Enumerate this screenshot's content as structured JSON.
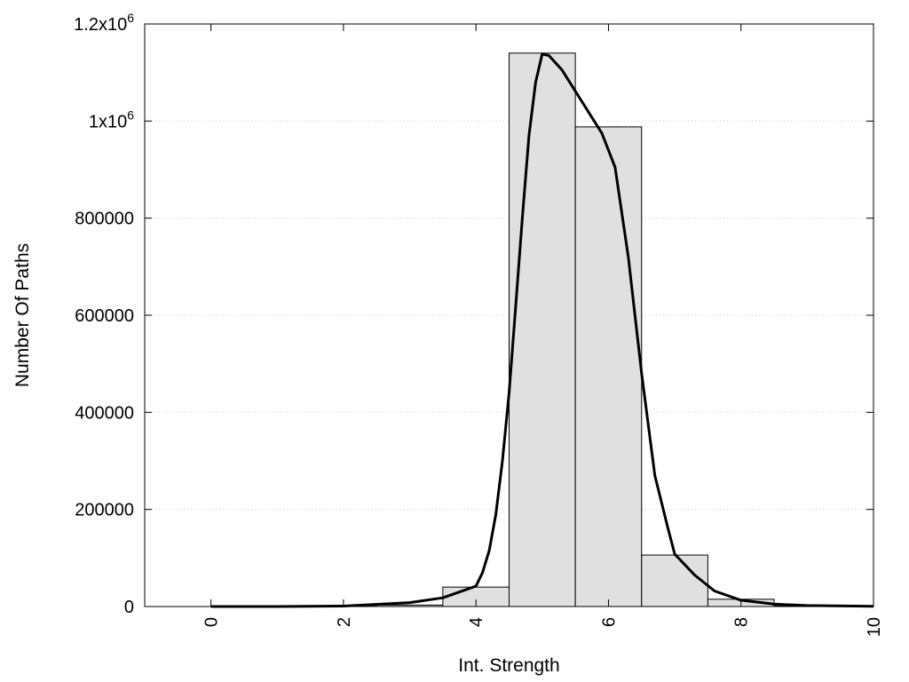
{
  "chart_data": {
    "type": "bar",
    "xlabel": "Int. Strength",
    "ylabel": "Number Of Paths",
    "xlim": [
      -1,
      10
    ],
    "ylim": [
      0,
      1200000
    ],
    "grid": "horizontal dotted",
    "x_ticks": [
      {
        "value": 0,
        "label": "0"
      },
      {
        "value": 2,
        "label": "2"
      },
      {
        "value": 4,
        "label": "4"
      },
      {
        "value": 6,
        "label": "6"
      },
      {
        "value": 8,
        "label": "8"
      },
      {
        "value": 10,
        "label": "10"
      }
    ],
    "y_ticks": [
      {
        "value": 0,
        "label": "0"
      },
      {
        "value": 200000,
        "label": "200000"
      },
      {
        "value": 400000,
        "label": "400000"
      },
      {
        "value": 600000,
        "label": "600000"
      },
      {
        "value": 800000,
        "label": "800000"
      },
      {
        "value": 1000000,
        "label": "1x10",
        "sup": "6"
      },
      {
        "value": 1200000,
        "label": "1.2x10",
        "sup": "6"
      }
    ],
    "bars": [
      {
        "x": 0,
        "value": 0
      },
      {
        "x": 1,
        "value": 0
      },
      {
        "x": 2,
        "value": 500
      },
      {
        "x": 3,
        "value": 3000
      },
      {
        "x": 4,
        "value": 40000
      },
      {
        "x": 5,
        "value": 1140000
      },
      {
        "x": 6,
        "value": 988000
      },
      {
        "x": 7,
        "value": 106000
      },
      {
        "x": 8,
        "value": 15000
      },
      {
        "x": 9,
        "value": 2000
      }
    ],
    "bar_width": 1,
    "fit_curve": [
      [
        0,
        0
      ],
      [
        1,
        0
      ],
      [
        2,
        1000
      ],
      [
        3,
        8000
      ],
      [
        3.5,
        18000
      ],
      [
        4,
        42000
      ],
      [
        4.1,
        70000
      ],
      [
        4.2,
        115000
      ],
      [
        4.3,
        190000
      ],
      [
        4.4,
        300000
      ],
      [
        4.5,
        440000
      ],
      [
        4.6,
        620000
      ],
      [
        4.7,
        800000
      ],
      [
        4.8,
        970000
      ],
      [
        4.9,
        1080000
      ],
      [
        5.0,
        1138000
      ],
      [
        5.1,
        1135000
      ],
      [
        5.3,
        1105000
      ],
      [
        5.6,
        1040000
      ],
      [
        5.9,
        975000
      ],
      [
        6.1,
        905000
      ],
      [
        6.3,
        720000
      ],
      [
        6.5,
        480000
      ],
      [
        6.7,
        270000
      ],
      [
        6.9,
        160000
      ],
      [
        7.0,
        108000
      ],
      [
        7.3,
        65000
      ],
      [
        7.6,
        32000
      ],
      [
        8.0,
        13000
      ],
      [
        8.5,
        5000
      ],
      [
        9.0,
        2000
      ],
      [
        10,
        500
      ]
    ]
  }
}
